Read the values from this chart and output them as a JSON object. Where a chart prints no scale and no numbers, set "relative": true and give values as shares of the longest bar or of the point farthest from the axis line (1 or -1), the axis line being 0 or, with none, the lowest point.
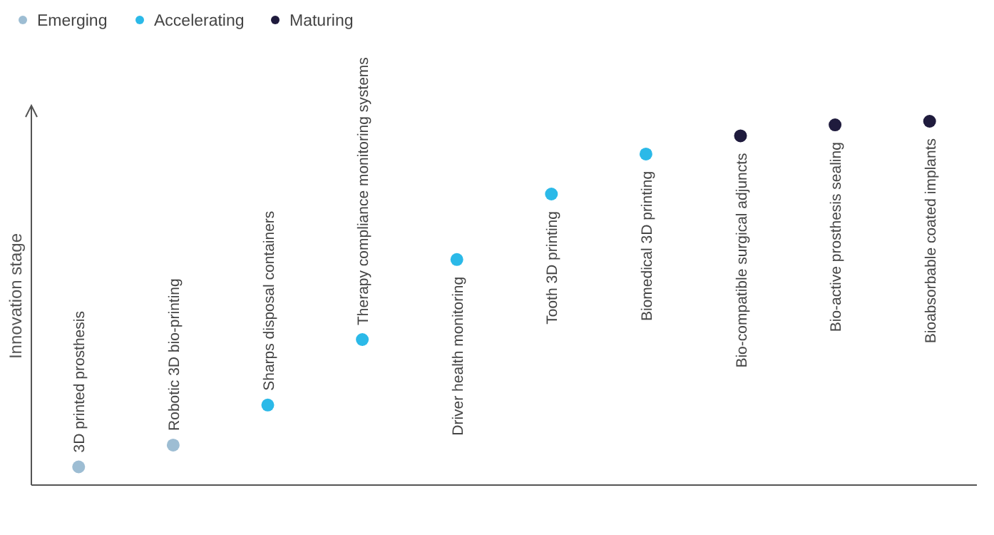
{
  "chart_data": {
    "type": "scatter",
    "ylabel": "Innovation stage",
    "relative": true,
    "marker": "circle",
    "legend": "top left",
    "categories": [
      "3D printed prosthesis",
      "Robotic 3D bio-printing",
      "Sharps disposal containers",
      "Therapy compliance monitoring systems",
      "Driver health monitoring",
      "Tooth 3D printing",
      "Biomedical 3D printing",
      "Bio-compatible surgical adjuncts",
      "Bio-active prosthesis sealing",
      "Bioabsorbable coated implants"
    ],
    "series": [
      {
        "name": "Emerging",
        "color": "#9dbdd3",
        "values": [
          0.05,
          0.11,
          null,
          null,
          null,
          null,
          null,
          null,
          null,
          null
        ]
      },
      {
        "name": "Accelerating",
        "color": "#2bb9e8",
        "values": [
          null,
          null,
          0.22,
          0.4,
          0.62,
          0.8,
          0.91,
          null,
          null,
          null
        ]
      },
      {
        "name": "Maturing",
        "color": "#1f1b3d",
        "values": [
          null,
          null,
          null,
          null,
          null,
          null,
          null,
          0.96,
          0.99,
          1
        ]
      }
    ]
  }
}
